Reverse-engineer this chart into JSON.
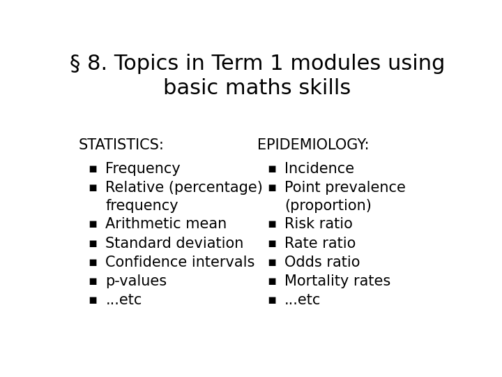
{
  "title": "§ 8. Topics in Term 1 modules using\nbasic maths skills",
  "title_fontsize": 22,
  "title_fontweight": "normal",
  "background_color": "#ffffff",
  "text_color": "#000000",
  "left_header": "STATISTICS:",
  "left_items": [
    "Frequency",
    "Relative (percentage)\nfrequency",
    "Arithmetic mean",
    "Standard deviation",
    "Confidence intervals",
    "p-values",
    "...etc"
  ],
  "right_header": "EPIDEMIOLOGY:",
  "right_items": [
    "Incidence",
    "Point prevalence\n(proportion)",
    "Risk ratio",
    "Rate ratio",
    "Odds ratio",
    "Mortality rates",
    "...etc"
  ],
  "header_fontsize": 15,
  "item_fontsize": 15,
  "bullet": "▪"
}
